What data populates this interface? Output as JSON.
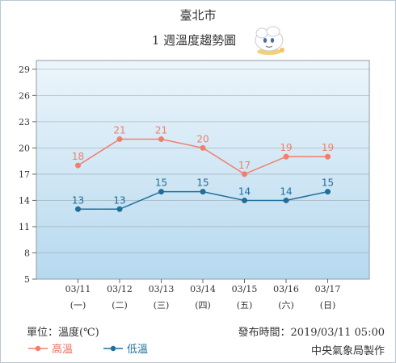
{
  "title": "臺北市",
  "subtitle": "1 週溫度趨勢圖",
  "unit_label": "單位：溫度(℃)",
  "issued_label": "發布時間：2019/03/11 05:00",
  "agency": "中央氣象局製作",
  "mascot_icon": "cloud-mascot-icon",
  "colors": {
    "high": "#f07f6b",
    "low": "#1f6f9a",
    "plot_top": "#ecf5fb",
    "plot_bottom": "#b6d9ef",
    "grid": "#9aa6ae"
  },
  "chart_data": {
    "type": "line",
    "title": "1 週溫度趨勢圖",
    "xlabel": "",
    "ylabel": "",
    "categories": [
      "03/11",
      "03/12",
      "03/13",
      "03/14",
      "03/15",
      "03/16",
      "03/17"
    ],
    "weekdays": [
      "(一)",
      "(二)",
      "(三)",
      "(四)",
      "(五)",
      "(六)",
      "(日)"
    ],
    "yticks": [
      5,
      8,
      11,
      14,
      17,
      20,
      23,
      26,
      29
    ],
    "ylim": [
      5,
      30
    ],
    "grid": true,
    "legend": "bottom-left",
    "series": [
      {
        "name": "高溫",
        "values": [
          18,
          21,
          21,
          20,
          17,
          19,
          19
        ]
      },
      {
        "name": "低溫",
        "values": [
          13,
          13,
          15,
          15,
          14,
          14,
          15
        ]
      }
    ]
  }
}
